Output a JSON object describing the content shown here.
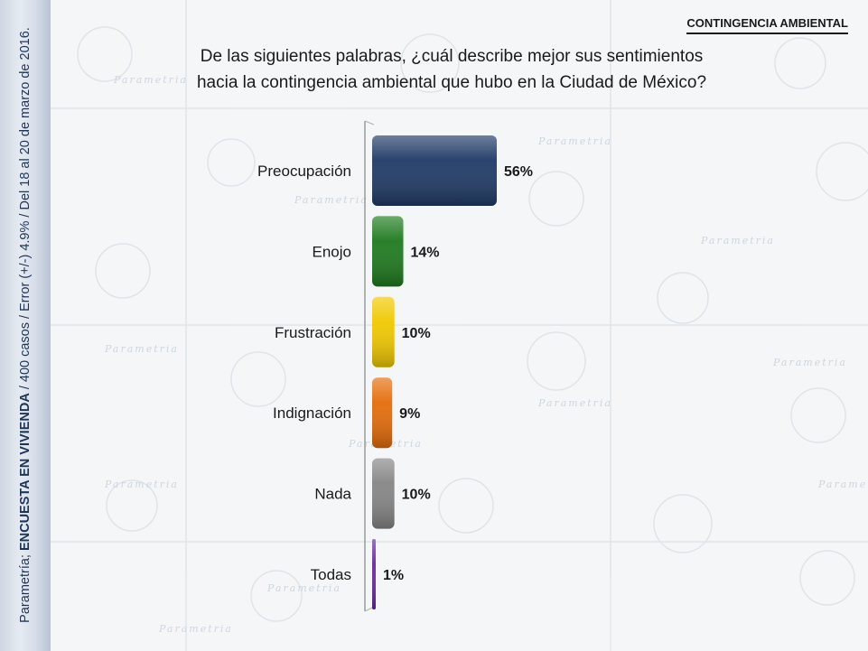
{
  "header": {
    "section": "CONTINGENCIA AMBIENTAL"
  },
  "question": {
    "line1": "De las siguientes palabras, ¿cuál describe mejor sus sentimientos",
    "line2": "hacia la contingencia ambiental que hubo en la Ciudad de México?"
  },
  "source": {
    "prefix": "Parametría; ",
    "survey": "ENCUESTA EN VIVIENDA",
    "details": " / 400 casos / Error (+/-) 4.9% / Del 18 al 20 de marzo de 2016."
  },
  "watermark": {
    "text": "Parametria"
  },
  "colors": {
    "preocupacion": "#1f3a66",
    "enojo": "#1e7a1e",
    "frustracion": "#f0c800",
    "indignacion": "#e46c0a",
    "nada": "#858585",
    "todas": "#6a2a9a"
  },
  "chart_data": {
    "type": "bar",
    "orientation": "horizontal",
    "title": "De las siguientes palabras, ¿cuál describe mejor sus sentimientos hacia la contingencia ambiental que hubo en la Ciudad de México?",
    "categories": [
      "Preocupación",
      "Enojo",
      "Frustración",
      "Indignación",
      "Nada",
      "Todas"
    ],
    "values": [
      56,
      14,
      10,
      9,
      10,
      1
    ],
    "value_labels": [
      "56%",
      "14%",
      "10%",
      "9%",
      "10%",
      "1%"
    ],
    "unit": "%",
    "xlim": [
      0,
      56
    ],
    "grid": false,
    "legend": "none"
  }
}
